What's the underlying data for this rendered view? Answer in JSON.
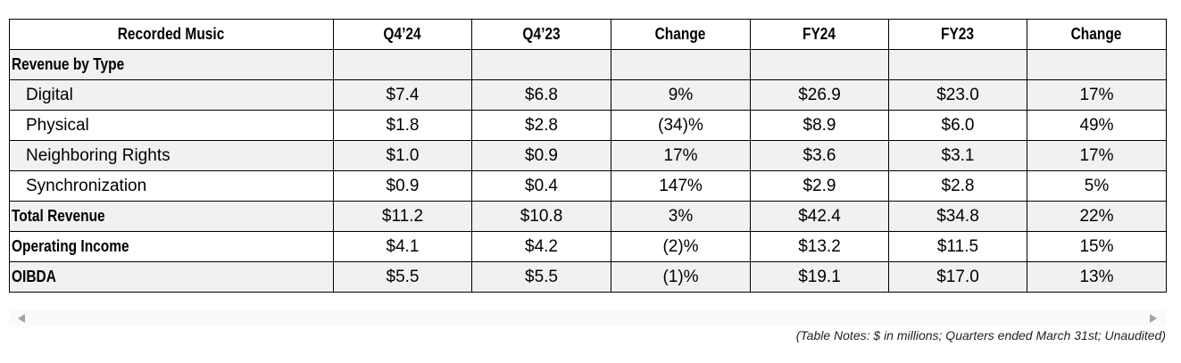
{
  "table": {
    "headers": [
      "Recorded Music",
      "Q4’24",
      "Q4’23",
      "Change",
      "FY24",
      "FY23",
      "Change"
    ],
    "rows": [
      {
        "label": "Revenue by Type",
        "values": [
          "",
          "",
          "",
          "",
          "",
          ""
        ]
      },
      {
        "label": "Digital",
        "values": [
          "$7.4",
          "$6.8",
          "9%",
          "$26.9",
          "$23.0",
          "17%"
        ]
      },
      {
        "label": "Physical",
        "values": [
          "$1.8",
          "$2.8",
          "(34)%",
          "$8.9",
          "$6.0",
          "49%"
        ]
      },
      {
        "label": "Neighboring Rights",
        "values": [
          "$1.0",
          "$0.9",
          "17%",
          "$3.6",
          "$3.1",
          "17%"
        ]
      },
      {
        "label": "Synchronization",
        "values": [
          "$0.9",
          "$0.4",
          "147%",
          "$2.9",
          "$2.8",
          "5%"
        ]
      },
      {
        "label": "Total Revenue",
        "values": [
          "$11.2",
          "$10.8",
          "3%",
          "$42.4",
          "$34.8",
          "22%"
        ]
      },
      {
        "label": "Operating Income",
        "values": [
          "$4.1",
          "$4.2",
          "(2)%",
          "$13.2",
          "$11.5",
          "15%"
        ]
      },
      {
        "label": "OIBDA",
        "values": [
          "$5.5",
          "$5.5",
          "(1)%",
          "$19.1",
          "$17.0",
          "13%"
        ]
      }
    ]
  },
  "scrollbar": {
    "left_icon": "scroll-left-arrow-icon",
    "right_icon": "scroll-right-arrow-icon"
  },
  "notes": "(Table Notes: $ in millions; Quarters ended March 31st; Unaudited)"
}
